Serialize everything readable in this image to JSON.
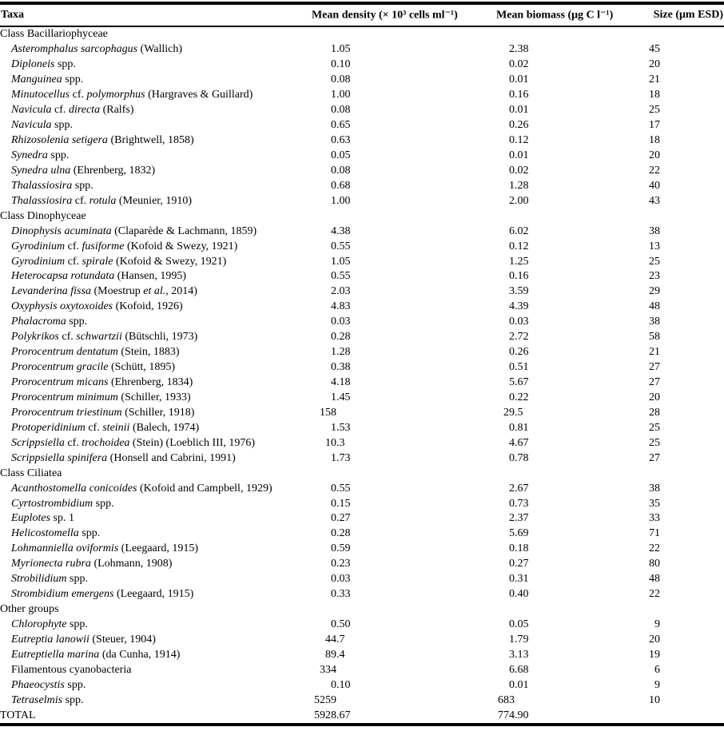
{
  "colors": {
    "text": "#000000",
    "background": "#ffffff",
    "rule": "#000000"
  },
  "header": {
    "taxa": "Taxa",
    "density": "Mean density (× 10³ cells ml⁻¹)",
    "biomass": "Mean biomass (μg C l⁻¹)",
    "size": "Size (μm ESD)"
  },
  "rows": [
    {
      "type": "section",
      "name": [
        {
          "t": "Class Bacillariophyceae",
          "i": false
        }
      ]
    },
    {
      "type": "taxon",
      "name": [
        {
          "t": "Asteromphalus sarcophagus",
          "i": true
        },
        {
          "t": " (Wallich)",
          "i": false
        }
      ],
      "density": "1.05",
      "biomass": "2.38",
      "size": "45"
    },
    {
      "type": "taxon",
      "name": [
        {
          "t": "Diploneis",
          "i": true
        },
        {
          "t": " spp.",
          "i": false
        }
      ],
      "density": "0.10",
      "biomass": "0.02",
      "size": "20"
    },
    {
      "type": "taxon",
      "name": [
        {
          "t": "Manguinea",
          "i": true
        },
        {
          "t": " spp.",
          "i": false
        }
      ],
      "density": "0.08",
      "biomass": "0.01",
      "size": "21"
    },
    {
      "type": "taxon",
      "name": [
        {
          "t": "Minutocellus",
          "i": true
        },
        {
          "t": " cf. ",
          "i": false
        },
        {
          "t": "polymorphus",
          "i": true
        },
        {
          "t": " (Hargraves & Guillard)",
          "i": false
        }
      ],
      "density": "1.00",
      "biomass": "0.16",
      "size": "18"
    },
    {
      "type": "taxon",
      "name": [
        {
          "t": "Navicula",
          "i": true
        },
        {
          "t": " cf. ",
          "i": false
        },
        {
          "t": "directa",
          "i": true
        },
        {
          "t": " (Ralfs)",
          "i": false
        }
      ],
      "density": "0.08",
      "biomass": "0.01",
      "size": "25"
    },
    {
      "type": "taxon",
      "name": [
        {
          "t": "Navicula",
          "i": true
        },
        {
          "t": " spp.",
          "i": false
        }
      ],
      "density": "0.65",
      "biomass": "0.26",
      "size": "17"
    },
    {
      "type": "taxon",
      "name": [
        {
          "t": "Rhizosolenia setigera",
          "i": true
        },
        {
          "t": " (Brightwell, 1858)",
          "i": false
        }
      ],
      "density": "0.63",
      "biomass": "0.12",
      "size": "18"
    },
    {
      "type": "taxon",
      "name": [
        {
          "t": "Synedra",
          "i": true
        },
        {
          "t": " spp.",
          "i": false
        }
      ],
      "density": "0.05",
      "biomass": "0.01",
      "size": "20"
    },
    {
      "type": "taxon",
      "name": [
        {
          "t": "Synedra ulna",
          "i": true
        },
        {
          "t": " (Ehrenberg, 1832)",
          "i": false
        }
      ],
      "density": "0.08",
      "biomass": "0.02",
      "size": "22"
    },
    {
      "type": "taxon",
      "name": [
        {
          "t": "Thalassiosira",
          "i": true
        },
        {
          "t": " spp.",
          "i": false
        }
      ],
      "density": "0.68",
      "biomass": "1.28",
      "size": "40"
    },
    {
      "type": "taxon",
      "name": [
        {
          "t": "Thalassiosira",
          "i": true
        },
        {
          "t": " cf. ",
          "i": false
        },
        {
          "t": "rotula",
          "i": true
        },
        {
          "t": " (Meunier, 1910)",
          "i": false
        }
      ],
      "density": "1.00",
      "biomass": "2.00",
      "size": "43"
    },
    {
      "type": "section",
      "name": [
        {
          "t": "Class Dinophyceae",
          "i": false
        }
      ]
    },
    {
      "type": "taxon",
      "name": [
        {
          "t": "Dinophysis acuminata",
          "i": true
        },
        {
          "t": " (Claparède & Lachmann, 1859)",
          "i": false
        }
      ],
      "density": "4.38",
      "biomass": "6.02",
      "size": "38"
    },
    {
      "type": "taxon",
      "name": [
        {
          "t": "Gyrodinium",
          "i": true
        },
        {
          "t": " cf. ",
          "i": false
        },
        {
          "t": "fusiforme",
          "i": true
        },
        {
          "t": " (Kofoid & Swezy, 1921)",
          "i": false
        }
      ],
      "density": "0.55",
      "biomass": "0.12",
      "size": "13"
    },
    {
      "type": "taxon",
      "name": [
        {
          "t": "Gyrodinium",
          "i": true
        },
        {
          "t": " cf. ",
          "i": false
        },
        {
          "t": "spirale",
          "i": true
        },
        {
          "t": " (Kofoid & Swezy, 1921)",
          "i": false
        }
      ],
      "density": "1.05",
      "biomass": "1.25",
      "size": "25"
    },
    {
      "type": "taxon",
      "name": [
        {
          "t": "Heterocapsa rotundata",
          "i": true
        },
        {
          "t": " (Hansen, 1995)",
          "i": false
        }
      ],
      "density": "0.55",
      "biomass": "0.16",
      "size": "23"
    },
    {
      "type": "taxon",
      "name": [
        {
          "t": "Levanderina fissa",
          "i": true
        },
        {
          "t": " (Moestrup ",
          "i": false
        },
        {
          "t": "et al.",
          "i": true
        },
        {
          "t": ", 2014)",
          "i": false
        }
      ],
      "density": "2.03",
      "biomass": "3.59",
      "size": "29"
    },
    {
      "type": "taxon",
      "name": [
        {
          "t": "Oxyphysis oxytoxoides",
          "i": true
        },
        {
          "t": " (Kofoid, 1926)",
          "i": false
        }
      ],
      "density": "4.83",
      "biomass": "4.39",
      "size": "48"
    },
    {
      "type": "taxon",
      "name": [
        {
          "t": "Phalacroma",
          "i": true
        },
        {
          "t": " spp.",
          "i": false
        }
      ],
      "density": "0.03",
      "biomass": "0.03",
      "size": "38"
    },
    {
      "type": "taxon",
      "name": [
        {
          "t": "Polykrikos",
          "i": true
        },
        {
          "t": " cf. ",
          "i": false
        },
        {
          "t": "schwartzii",
          "i": true
        },
        {
          "t": " (Bütschli, 1973)",
          "i": false
        }
      ],
      "density": "0.28",
      "biomass": "2.72",
      "size": "58"
    },
    {
      "type": "taxon",
      "name": [
        {
          "t": "Prorocentrum dentatum",
          "i": true
        },
        {
          "t": " (Stein, 1883)",
          "i": false
        }
      ],
      "density": "1.28",
      "biomass": "0.26",
      "size": "21"
    },
    {
      "type": "taxon",
      "name": [
        {
          "t": "Prorocentrum gracile",
          "i": true
        },
        {
          "t": " (Schütt, 1895)",
          "i": false
        }
      ],
      "density": "0.38",
      "biomass": "0.51",
      "size": "27"
    },
    {
      "type": "taxon",
      "name": [
        {
          "t": "Prorocentrum micans",
          "i": true
        },
        {
          "t": " (Ehrenberg, 1834)",
          "i": false
        }
      ],
      "density": "4.18",
      "biomass": "5.67",
      "size": "27"
    },
    {
      "type": "taxon",
      "name": [
        {
          "t": "Prorocentrum minimum",
          "i": true
        },
        {
          "t": " (Schiller, 1933)",
          "i": false
        }
      ],
      "density": "1.45",
      "biomass": "0.22",
      "size": "20"
    },
    {
      "type": "taxon",
      "name": [
        {
          "t": "Prorocentrum triestinum",
          "i": true
        },
        {
          "t": " (Schiller, 1918)",
          "i": false
        }
      ],
      "density": "158",
      "biomass": "29.5",
      "size": "28"
    },
    {
      "type": "taxon",
      "name": [
        {
          "t": "Protoperidinium",
          "i": true
        },
        {
          "t": " cf. ",
          "i": false
        },
        {
          "t": "steinii",
          "i": true
        },
        {
          "t": " (Balech, 1974)",
          "i": false
        }
      ],
      "density": "1.53",
      "biomass": "0.81",
      "size": "25"
    },
    {
      "type": "taxon",
      "name": [
        {
          "t": "Scrippsiella",
          "i": true
        },
        {
          "t": " cf. ",
          "i": false
        },
        {
          "t": "trochoidea",
          "i": true
        },
        {
          "t": " (Stein) (Loeblich III, 1976)",
          "i": false
        }
      ],
      "density": "10.3",
      "biomass": "4.67",
      "size": "25"
    },
    {
      "type": "taxon",
      "name": [
        {
          "t": "Scrippsiella spinifera",
          "i": true
        },
        {
          "t": " (Honsell and Cabrini, 1991)",
          "i": false
        }
      ],
      "density": "1.73",
      "biomass": "0.78",
      "size": "27"
    },
    {
      "type": "section",
      "name": [
        {
          "t": "Class Ciliatea",
          "i": false
        }
      ]
    },
    {
      "type": "taxon",
      "name": [
        {
          "t": "Acanthostomella conicoides",
          "i": true
        },
        {
          "t": " (Kofoid and Campbell, 1929)",
          "i": false
        }
      ],
      "density": "0.55",
      "biomass": "2.67",
      "size": "38"
    },
    {
      "type": "taxon",
      "name": [
        {
          "t": "Cyrtostrombidium",
          "i": true
        },
        {
          "t": " spp.",
          "i": false
        }
      ],
      "density": "0.15",
      "biomass": "0.73",
      "size": "35"
    },
    {
      "type": "taxon",
      "name": [
        {
          "t": "Euplotes",
          "i": true
        },
        {
          "t": " sp. 1",
          "i": false
        }
      ],
      "density": "0.27",
      "biomass": "2.37",
      "size": "33"
    },
    {
      "type": "taxon",
      "name": [
        {
          "t": "Helicostomella",
          "i": true
        },
        {
          "t": " spp.",
          "i": false
        }
      ],
      "density": "0.28",
      "biomass": "5.69",
      "size": "71"
    },
    {
      "type": "taxon",
      "name": [
        {
          "t": "Lohmanniella oviformis",
          "i": true
        },
        {
          "t": " (Leegaard, 1915)",
          "i": false
        }
      ],
      "density": "0.59",
      "biomass": "0.18",
      "size": "22"
    },
    {
      "type": "taxon",
      "name": [
        {
          "t": "Myrionecta rubra",
          "i": true
        },
        {
          "t": " (Lohmann, 1908)",
          "i": false
        }
      ],
      "density": "0.23",
      "biomass": "0.27",
      "size": "80"
    },
    {
      "type": "taxon",
      "name": [
        {
          "t": "Strobilidium",
          "i": true
        },
        {
          "t": " spp.",
          "i": false
        }
      ],
      "density": "0.03",
      "biomass": "0.31",
      "size": "48"
    },
    {
      "type": "taxon",
      "name": [
        {
          "t": "Strombidium emergens",
          "i": true
        },
        {
          "t": " (Leegaard, 1915)",
          "i": false
        }
      ],
      "density": "0.33",
      "biomass": "0.40",
      "size": "22"
    },
    {
      "type": "section",
      "name": [
        {
          "t": "Other groups",
          "i": false
        }
      ]
    },
    {
      "type": "taxon",
      "name": [
        {
          "t": "Chlorophyte",
          "i": true
        },
        {
          "t": " spp.",
          "i": false
        }
      ],
      "density": "0.50",
      "biomass": "0.05",
      "size": "9"
    },
    {
      "type": "taxon",
      "name": [
        {
          "t": "Eutreptia lanowii",
          "i": true
        },
        {
          "t": " (Steuer, 1904)",
          "i": false
        }
      ],
      "density": "44.7",
      "biomass": "1.79",
      "size": "20"
    },
    {
      "type": "taxon",
      "name": [
        {
          "t": "Eutreptiella marina",
          "i": true
        },
        {
          "t": " (da Cunha, 1914)",
          "i": false
        }
      ],
      "density": "89.4",
      "biomass": "3.13",
      "size": "19"
    },
    {
      "type": "taxon",
      "name": [
        {
          "t": "Filamentous cyanobacteria",
          "i": false
        }
      ],
      "density": "334",
      "biomass": "6.68",
      "size": "6"
    },
    {
      "type": "taxon",
      "name": [
        {
          "t": "Phaeocystis",
          "i": true
        },
        {
          "t": " spp.",
          "i": false
        }
      ],
      "density": "0.10",
      "biomass": "0.01",
      "size": "9"
    },
    {
      "type": "taxon",
      "name": [
        {
          "t": "Tetraselmis",
          "i": true
        },
        {
          "t": " spp.",
          "i": false
        }
      ],
      "density": "5259",
      "biomass": "683",
      "size": "10"
    },
    {
      "type": "total",
      "name": [
        {
          "t": "TOTAL",
          "i": false
        }
      ],
      "density": "5928.67",
      "biomass": "774.90",
      "size": ""
    }
  ]
}
